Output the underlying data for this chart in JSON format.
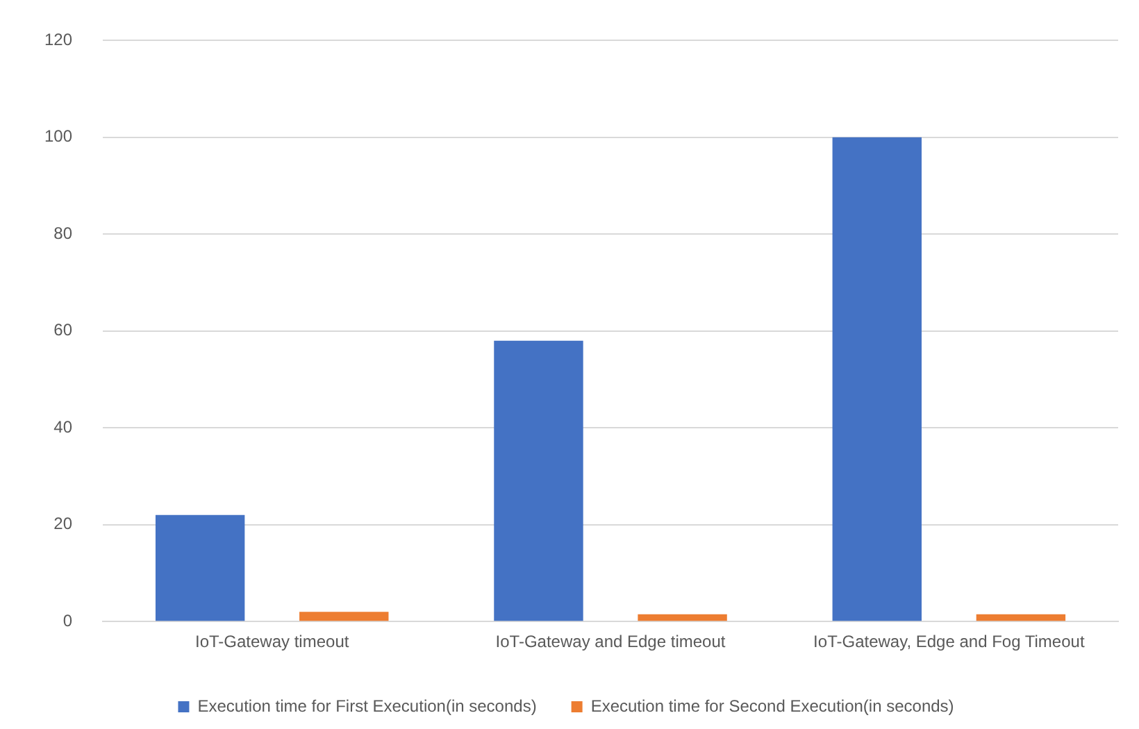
{
  "chart_data": {
    "type": "bar",
    "categories": [
      "IoT-Gateway timeout",
      "IoT-Gateway and Edge timeout",
      "IoT-Gateway, Edge and Fog Timeout"
    ],
    "series": [
      {
        "name": "Execution time for First Execution(in seconds)",
        "color": "#4472c4",
        "values": [
          22,
          58,
          100
        ]
      },
      {
        "name": "Execution time for Second Execution(in seconds)",
        "color": "#ed7d31",
        "values": [
          2,
          1.5,
          1.5
        ]
      }
    ],
    "ylim": [
      0,
      120
    ],
    "yticks": [
      0,
      20,
      40,
      60,
      80,
      100,
      120
    ],
    "grid": "y",
    "legend": "bottom"
  }
}
